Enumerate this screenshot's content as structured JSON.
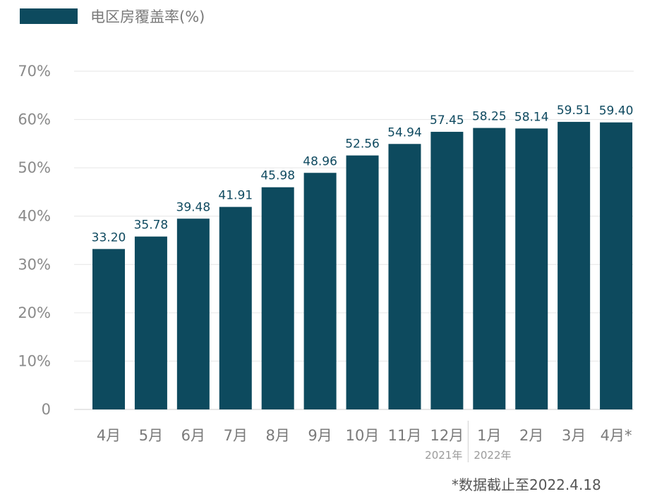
{
  "chart_data": {
    "type": "bar",
    "legend": {
      "label": "电区房覆盖率(%)",
      "color": "#0d4a5e",
      "position": "top-left"
    },
    "categories": [
      "4月",
      "5月",
      "6月",
      "7月",
      "8月",
      "9月",
      "10月",
      "11月",
      "12月",
      "1月",
      "2月",
      "3月",
      "4月*"
    ],
    "values": [
      33.2,
      35.78,
      39.48,
      41.91,
      45.98,
      48.96,
      52.56,
      54.94,
      57.45,
      58.25,
      58.14,
      59.51,
      59.4
    ],
    "value_labels": [
      "33.20",
      "35.78",
      "39.48",
      "41.91",
      "45.98",
      "48.96",
      "52.56",
      "54.94",
      "57.45",
      "58.25",
      "58.14",
      "59.51",
      "59.40"
    ],
    "ylim": [
      0,
      70
    ],
    "yticks": [
      0,
      10,
      20,
      30,
      40,
      50,
      60,
      70
    ],
    "ytick_labels": [
      "0",
      "10%",
      "20%",
      "30%",
      "40%",
      "50%",
      "60%",
      "70%"
    ],
    "year_labels": [
      {
        "text": "2021年",
        "after_category_index": 8
      },
      {
        "text": "2022年",
        "after_category_index": 9
      }
    ],
    "grid": true,
    "bar_color": "#0d4a5e",
    "footnote": "*数据截止至2022.4.18"
  }
}
